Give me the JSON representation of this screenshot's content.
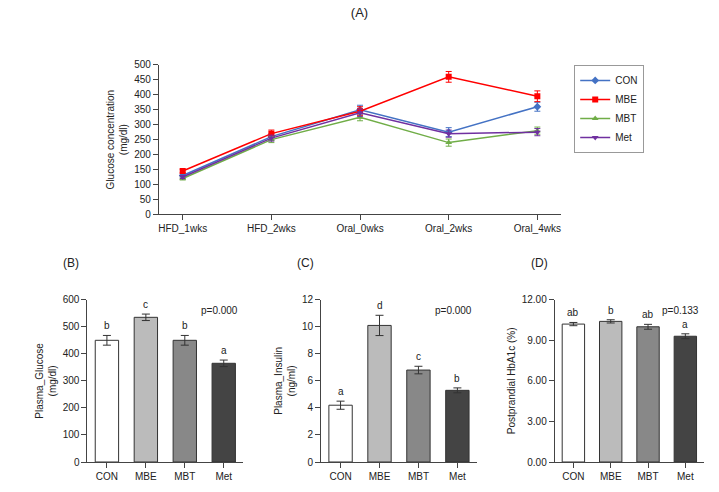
{
  "chart_data": [
    {
      "type": "line",
      "title": "(A)",
      "categories": [
        "HFD_1wks",
        "HFD_2wks",
        "Oral_0wks",
        "Oral_2wks",
        "Oral_4wks"
      ],
      "y_label": "Glucose concentration\n(mg/dl)",
      "ylim": [
        0,
        500
      ],
      "yticks": [
        0,
        50,
        100,
        150,
        200,
        250,
        300,
        350,
        400,
        450,
        500
      ],
      "grid": false,
      "legend": "upper right",
      "series": [
        {
          "name": "CON",
          "color": "#4472C4",
          "marker": "diamond",
          "values": [
            130,
            260,
            350,
            275,
            360
          ],
          "errors": [
            5,
            10,
            15,
            15,
            15
          ]
        },
        {
          "name": "MBE",
          "color": "#FF0000",
          "marker": "square",
          "values": [
            145,
            270,
            345,
            460,
            395
          ],
          "errors": [
            6,
            12,
            15,
            18,
            18
          ]
        },
        {
          "name": "MBT",
          "color": "#70AD47",
          "marker": "triangle-up",
          "values": [
            120,
            250,
            325,
            240,
            280
          ],
          "errors": [
            5,
            10,
            12,
            12,
            12
          ]
        },
        {
          "name": "Met",
          "color": "#7030A0",
          "marker": "triangle-down",
          "values": [
            125,
            255,
            340,
            270,
            275
          ],
          "errors": [
            5,
            10,
            12,
            12,
            12
          ]
        }
      ]
    },
    {
      "type": "bar",
      "title": "(B)",
      "categories": [
        "CON",
        "MBE",
        "MBT",
        "Met"
      ],
      "values": [
        450,
        535,
        450,
        365
      ],
      "errors": [
        18,
        12,
        18,
        12
      ],
      "letters": [
        "b",
        "c",
        "b",
        "a"
      ],
      "annotation": "p=0.000",
      "colors": [
        "#FFFFFF",
        "#BBBBBB",
        "#888888",
        "#444444"
      ],
      "y_label": "Plasma_Glucose\n(mg/dl)",
      "ylim": [
        0,
        600
      ],
      "yticks": [
        0,
        100,
        200,
        300,
        400,
        500,
        600
      ],
      "grid": false
    },
    {
      "type": "bar",
      "title": "(C)",
      "categories": [
        "CON",
        "MBE",
        "MBT",
        "Met"
      ],
      "values": [
        4.2,
        10.1,
        6.8,
        5.3
      ],
      "errors": [
        0.3,
        0.75,
        0.28,
        0.18
      ],
      "letters": [
        "a",
        "d",
        "c",
        "b"
      ],
      "annotation": "p=0.000",
      "colors": [
        "#FFFFFF",
        "#BBBBBB",
        "#888888",
        "#444444"
      ],
      "y_label": "Plasma_Insulin\n(ng/ml)",
      "ylim": [
        0,
        12
      ],
      "yticks": [
        0,
        2,
        4,
        6,
        8,
        10,
        12
      ],
      "grid": false
    },
    {
      "type": "bar",
      "title": "(D)",
      "categories": [
        "CON",
        "MBE",
        "MBT",
        "Met"
      ],
      "values": [
        10.2,
        10.4,
        10.0,
        9.3
      ],
      "errors": [
        0.12,
        0.12,
        0.18,
        0.18
      ],
      "letters": [
        "ab",
        "b",
        "ab",
        "a"
      ],
      "annotation": "p=0.133",
      "colors": [
        "#FFFFFF",
        "#BBBBBB",
        "#888888",
        "#444444"
      ],
      "y_label": "Postprandial HbA1c (%)",
      "ylim": [
        0,
        12
      ],
      "yticks": [
        {
          "value": 0,
          "label": "0.00"
        },
        {
          "value": 3,
          "label": "3.00"
        },
        {
          "value": 6,
          "label": "6.00"
        },
        {
          "value": 9,
          "label": "9.00"
        },
        {
          "value": 12,
          "label": "12.00"
        }
      ],
      "grid": false
    }
  ]
}
